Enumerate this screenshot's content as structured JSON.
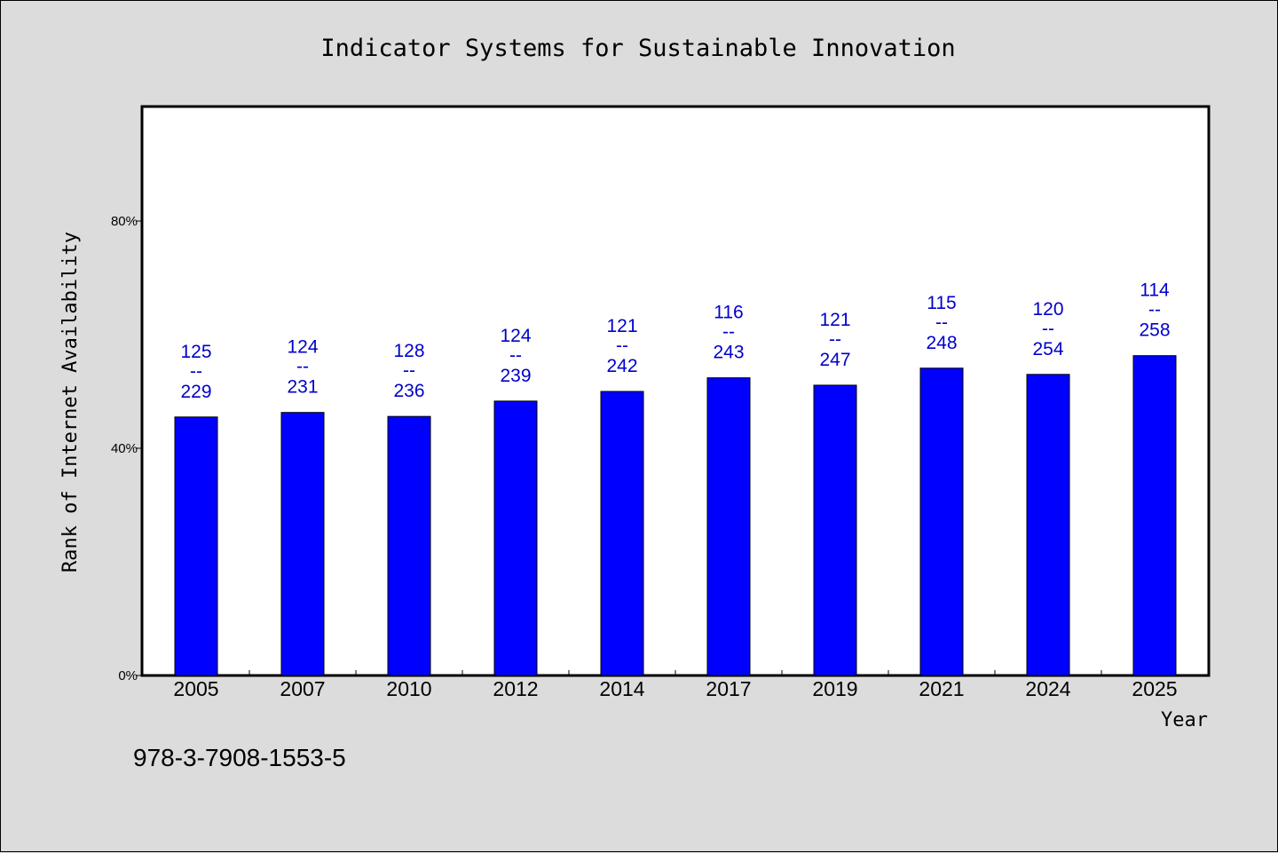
{
  "chart_data": {
    "type": "bar",
    "title": "Indicator Systems for Sustainable Innovation",
    "xlabel": "Year",
    "ylabel": "Rank of Internet Availability",
    "categories": [
      "2005",
      "2007",
      "2010",
      "2012",
      "2014",
      "2017",
      "2019",
      "2021",
      "2024",
      "2025"
    ],
    "values": [
      45.5,
      46.3,
      45.6,
      48.3,
      50.0,
      52.4,
      51.1,
      54.1,
      53.0,
      56.3
    ],
    "data_labels": [
      {
        "top": "125",
        "mid": "--",
        "bottom": "229"
      },
      {
        "top": "124",
        "mid": "--",
        "bottom": "231"
      },
      {
        "top": "128",
        "mid": "--",
        "bottom": "236"
      },
      {
        "top": "124",
        "mid": "--",
        "bottom": "239"
      },
      {
        "top": "121",
        "mid": "--",
        "bottom": "242"
      },
      {
        "top": "116",
        "mid": "--",
        "bottom": "243"
      },
      {
        "top": "121",
        "mid": "--",
        "bottom": "247"
      },
      {
        "top": "115",
        "mid": "--",
        "bottom": "248"
      },
      {
        "top": "120",
        "mid": "--",
        "bottom": "254"
      },
      {
        "top": "114",
        "mid": "--",
        "bottom": "258"
      }
    ],
    "y_ticks": [
      {
        "value": 0,
        "label": "0%"
      },
      {
        "value": 40,
        "label": "40%"
      },
      {
        "value": 80,
        "label": "80%"
      }
    ],
    "ylim": [
      0,
      100
    ],
    "grid": false,
    "legend": "none",
    "bar_color": "#0000ff",
    "label_color": "#0000cc"
  },
  "footnote": "978-3-7908-1553-5"
}
